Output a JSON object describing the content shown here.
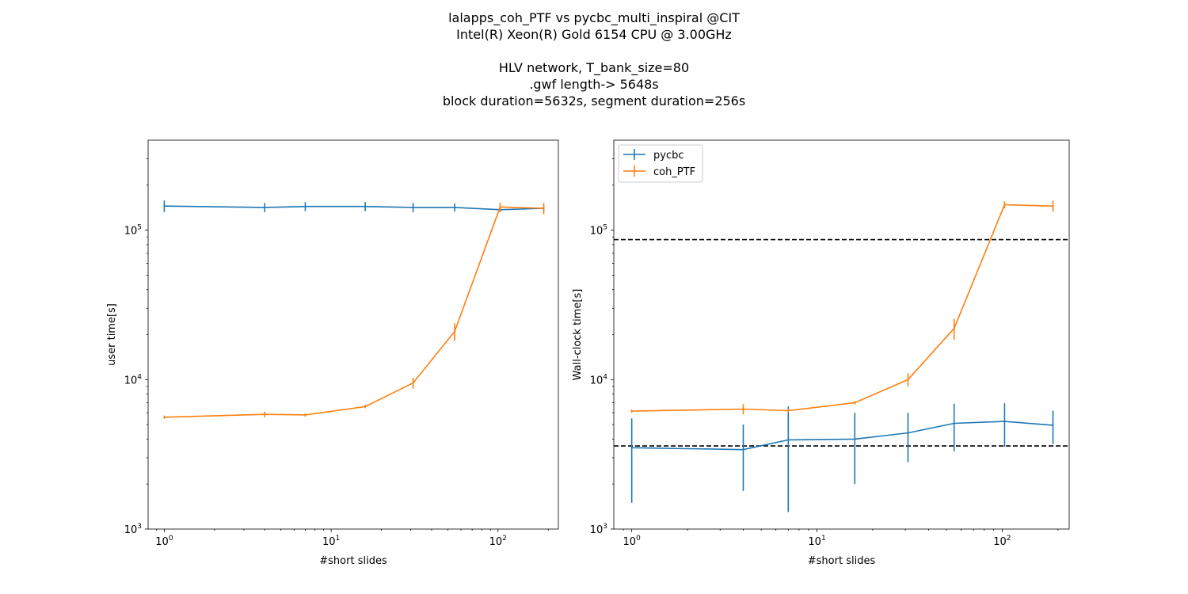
{
  "figure": {
    "title_lines": [
      "lalapps_coh_PTF vs pycbc_multi_inspiral @CIT",
      "Intel(R) Xeon(R) Gold 6154 CPU @ 3.00GHz",
      "",
      "HLV network, T_bank_size=80",
      ".gwf length-> 5648s",
      "block duration=5632s, segment duration=256s"
    ]
  },
  "colors": {
    "pycbc": "#1f77b4",
    "coh_PTF": "#ff7f0e",
    "reference_line": "#000000"
  },
  "chart_data": [
    {
      "type": "line",
      "xlabel": "#short slides",
      "ylabel": "user time[s]",
      "xscale": "log",
      "yscale": "log",
      "xlim": [
        0.8,
        230
      ],
      "ylim": [
        1000,
        400000
      ],
      "x_ticks": [
        {
          "value": 1,
          "base": "10",
          "exp": "0"
        },
        {
          "value": 10,
          "base": "10",
          "exp": "1"
        },
        {
          "value": 100,
          "base": "10",
          "exp": "2"
        }
      ],
      "y_ticks": [
        {
          "value": 1000,
          "base": "10",
          "exp": "3"
        },
        {
          "value": 10000,
          "base": "10",
          "exp": "4"
        },
        {
          "value": 100000,
          "base": "10",
          "exp": "5"
        }
      ],
      "grid": false,
      "legend": null,
      "hlines": [],
      "series": [
        {
          "key": "pycbc",
          "name": "pycbc",
          "x": [
            1,
            4,
            7,
            16,
            31,
            55,
            103,
            188
          ],
          "y": [
            145000,
            142000,
            144000,
            144000,
            142000,
            142000,
            137000,
            140000
          ],
          "yerr": [
            13000,
            10000,
            10000,
            10000,
            10000,
            9000,
            5000,
            5000
          ]
        },
        {
          "key": "coh_PTF",
          "name": "coh_PTF",
          "x": [
            1,
            4,
            7,
            16,
            31,
            55,
            103,
            188
          ],
          "y": [
            5600,
            5850,
            5800,
            6600,
            9500,
            21000,
            143000,
            140000
          ],
          "yerr": [
            0,
            250,
            0,
            0,
            800,
            2800,
            10000,
            12000
          ]
        }
      ]
    },
    {
      "type": "line",
      "xlabel": "#short slides",
      "ylabel": "Wall-clock time[s]",
      "xscale": "log",
      "yscale": "log",
      "xlim": [
        0.8,
        230
      ],
      "ylim": [
        1000,
        400000
      ],
      "x_ticks": [
        {
          "value": 1,
          "base": "10",
          "exp": "0"
        },
        {
          "value": 10,
          "base": "10",
          "exp": "1"
        },
        {
          "value": 100,
          "base": "10",
          "exp": "2"
        }
      ],
      "y_ticks": [
        {
          "value": 1000,
          "base": "10",
          "exp": "3"
        },
        {
          "value": 10000,
          "base": "10",
          "exp": "4"
        },
        {
          "value": 100000,
          "base": "10",
          "exp": "5"
        }
      ],
      "grid": false,
      "legend": "upper left",
      "hlines": [
        86400,
        3600
      ],
      "series": [
        {
          "key": "pycbc",
          "name": "pycbc",
          "x": [
            1,
            4,
            7,
            16,
            31,
            55,
            103,
            188
          ],
          "y": [
            3500,
            3400,
            3950,
            4000,
            4400,
            5100,
            5250,
            4950
          ],
          "yerr": [
            2000,
            1600,
            2650,
            2000,
            1600,
            1800,
            1700,
            1250
          ]
        },
        {
          "key": "coh_PTF",
          "name": "coh_PTF",
          "x": [
            1,
            4,
            7,
            16,
            31,
            55,
            103,
            188
          ],
          "y": [
            6150,
            6350,
            6200,
            7000,
            10000,
            22000,
            148000,
            145000
          ],
          "yerr": [
            0,
            500,
            0,
            0,
            1000,
            3500,
            8000,
            12000
          ]
        }
      ]
    }
  ]
}
